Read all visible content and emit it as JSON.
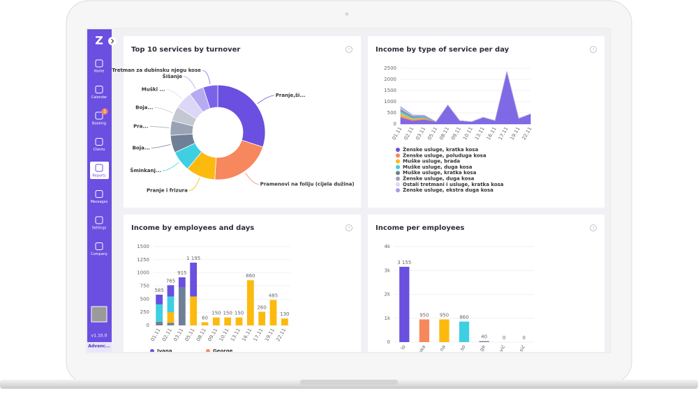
{
  "sidebar": {
    "logo": "Z",
    "items": [
      {
        "label": "Home"
      },
      {
        "label": "Calendar"
      },
      {
        "label": "Booking",
        "badge": "1"
      },
      {
        "label": "Clients"
      },
      {
        "label": "Reports"
      },
      {
        "label": "Messages"
      },
      {
        "label": "Settings"
      },
      {
        "label": "Company"
      }
    ],
    "active": 4,
    "version": "v1.10.0",
    "plan": "Advanc..."
  },
  "panels": [
    {
      "title": "Top 10 services by turnover",
      "chart": {
        "type": "donut",
        "categories": [
          "Pranje,ši...",
          "Pramenovi na foliju (cijela dužina)",
          "Pranje i frizura",
          "Šminkanj...",
          "Boja...",
          "Pra...",
          "Boja...",
          "Muški ...",
          "Šišanje",
          "Tretman za dubinsku njegu kose"
        ],
        "values": [
          30,
          21,
          10,
          7,
          6,
          5,
          5,
          6,
          5,
          5
        ],
        "colors": [
          "#6a4fe0",
          "#f7875c",
          "#fcba0f",
          "#3fcfe3",
          "#6f7f96",
          "#9aa3b4",
          "#c3c8d3",
          "#dcd6f7",
          "#b6aaf1",
          "#7b63e9"
        ]
      }
    },
    {
      "title": "Income by type of service per day",
      "chart": {
        "type": "stacked-area",
        "categories": [
          "01.11",
          "02.11",
          "03.11",
          "05.11",
          "08.11",
          "09.11",
          "10.11",
          "13.11",
          "16.11",
          "17.11",
          "19.11",
          "22.11"
        ],
        "ylim": [
          0,
          2500
        ],
        "yticks": [
          0,
          500,
          1000,
          1500,
          2000,
          2500
        ],
        "series": [
          {
            "name": "Ženske usluge, kratka kosa",
            "color": "#6a4fe0",
            "values": [
              300,
              150,
              200,
              100,
              850,
              150,
              100,
              300,
              150,
              2350,
              250,
              450
            ]
          },
          {
            "name": "Ženske usluge, poluduga kosa",
            "color": "#f7875c",
            "values": [
              100,
              50,
              50,
              0,
              0,
              0,
              0,
              0,
              0,
              0,
              0,
              0
            ]
          },
          {
            "name": "Muške usluge, brada",
            "color": "#fcba0f",
            "values": [
              80,
              40,
              30,
              0,
              0,
              0,
              0,
              0,
              0,
              0,
              0,
              0
            ]
          },
          {
            "name": "Muške usluge, duga kosa",
            "color": "#3fcfe3",
            "values": [
              100,
              60,
              40,
              0,
              0,
              0,
              0,
              0,
              0,
              0,
              0,
              0
            ]
          },
          {
            "name": "Muške usluge, kratka kosa",
            "color": "#6f7f96",
            "values": [
              60,
              40,
              30,
              0,
              0,
              0,
              0,
              0,
              0,
              0,
              0,
              0
            ]
          },
          {
            "name": "Ženske usluge, duga kosa",
            "color": "#9aa3b4",
            "values": [
              60,
              30,
              20,
              0,
              0,
              0,
              0,
              0,
              0,
              0,
              0,
              0
            ]
          },
          {
            "name": "Ostali tretmani i usluge, kratka kosa",
            "color": "#dcd6f7",
            "values": [
              40,
              20,
              20,
              0,
              0,
              0,
              0,
              0,
              0,
              0,
              0,
              0
            ]
          },
          {
            "name": "Ženske usluge, ekstra duga kosa",
            "color": "#a99af0",
            "values": [
              40,
              20,
              10,
              0,
              0,
              0,
              0,
              0,
              0,
              0,
              0,
              0
            ]
          }
        ]
      }
    },
    {
      "title": "Income by employees and days",
      "chart": {
        "type": "stacked-bar",
        "categories": [
          "01.11",
          "02.11",
          "03.11",
          "05.11",
          "08.11",
          "09.11",
          "10.11",
          "13.11",
          "16.11",
          "17.11",
          "19.11",
          "22.11"
        ],
        "ylim": [
          0,
          1500
        ],
        "yticks": [
          0,
          250,
          500,
          750,
          1000,
          1250,
          1500
        ],
        "series": [
          {
            "color": "#6f7f96",
            "values": [
              70,
              50,
              720,
              0,
              0,
              0,
              0,
              0,
              0,
              0,
              0,
              0
            ]
          },
          {
            "color": "#fcba0f",
            "values": [
              0,
              200,
              0,
              550,
              60,
              150,
              150,
              150,
              860,
              260,
              485,
              130
            ]
          },
          {
            "color": "#3fcfe3",
            "values": [
              330,
              300,
              0,
              0,
              0,
              0,
              0,
              0,
              0,
              0,
              0,
              0
            ]
          },
          {
            "name": "Ivana",
            "color": "#6a4fe0",
            "values": [
              185,
              215,
              195,
              645,
              0,
              0,
              0,
              0,
              0,
              0,
              0,
              0
            ]
          },
          {
            "name": "George",
            "color": "#f7875c",
            "values": [
              0,
              0,
              0,
              0,
              0,
              0,
              0,
              0,
              0,
              0,
              0,
              0
            ]
          }
        ],
        "totals": [
          585,
          765,
          915,
          1195,
          60,
          150,
          150,
          150,
          860,
          260,
          485,
          130
        ],
        "total_labels": [
          "585",
          "765",
          "915",
          "1 195",
          "60",
          "150",
          "150",
          "150",
          "860",
          "260",
          "485",
          "130"
        ]
      }
    },
    {
      "title": "Income per employees",
      "chart": {
        "type": "bar",
        "categories": [
          "lo",
          "nka",
          "na",
          "so",
          "ge",
          "vić",
          "sić"
        ],
        "values": [
          3155,
          950,
          950,
          860,
          40,
          0,
          0
        ],
        "value_labels": [
          "3 155",
          "950",
          "950",
          "860",
          "40",
          "0",
          "0"
        ],
        "colors": [
          "#6a4fe0",
          "#f7875c",
          "#fcba0f",
          "#3fcfe3",
          "#6f7f96",
          "#9aa3b4",
          "#c3c8d3"
        ],
        "ylim": [
          0,
          4000
        ],
        "yticks": [
          0,
          {
            "value": 1000,
            "label": "1k"
          },
          {
            "value": 2000,
            "label": "2k"
          },
          {
            "value": 3000,
            "label": "3k"
          },
          {
            "value": 4000,
            "label": "4k"
          }
        ]
      }
    }
  ]
}
